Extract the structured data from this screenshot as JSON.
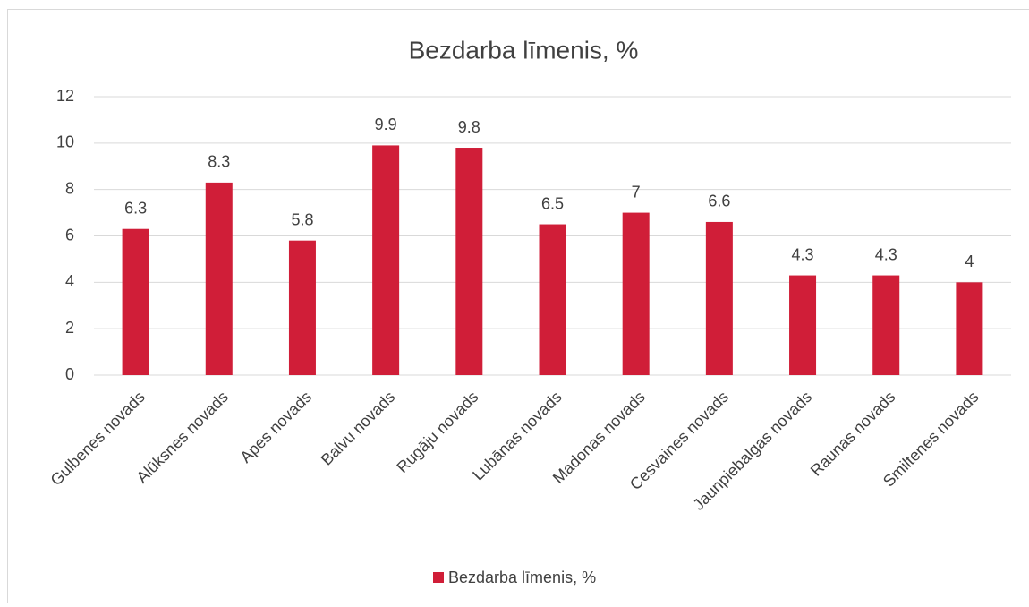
{
  "chart_data": {
    "type": "bar",
    "title": "Bezdarba līmenis, %",
    "categories": [
      "Gulbenes novads",
      "Alūksnes novads",
      "Apes novads",
      "Balvu novads",
      "Rugāju novads",
      "Lubānas novads",
      "Madonas novads",
      "Cesvaines novads",
      "Jaunpiebalgas novads",
      "Raunas novads",
      "Smiltenes novads"
    ],
    "series": [
      {
        "name": "Bezdarba līmenis, %",
        "color": "#d01e38",
        "values": [
          6.3,
          8.3,
          5.8,
          9.9,
          9.8,
          6.5,
          7,
          6.6,
          4.3,
          4.3,
          4
        ]
      }
    ],
    "ylim": [
      0,
      12
    ],
    "yticks": [
      0,
      2,
      4,
      6,
      8,
      10,
      12
    ],
    "grid": true,
    "legend": "bottom"
  }
}
